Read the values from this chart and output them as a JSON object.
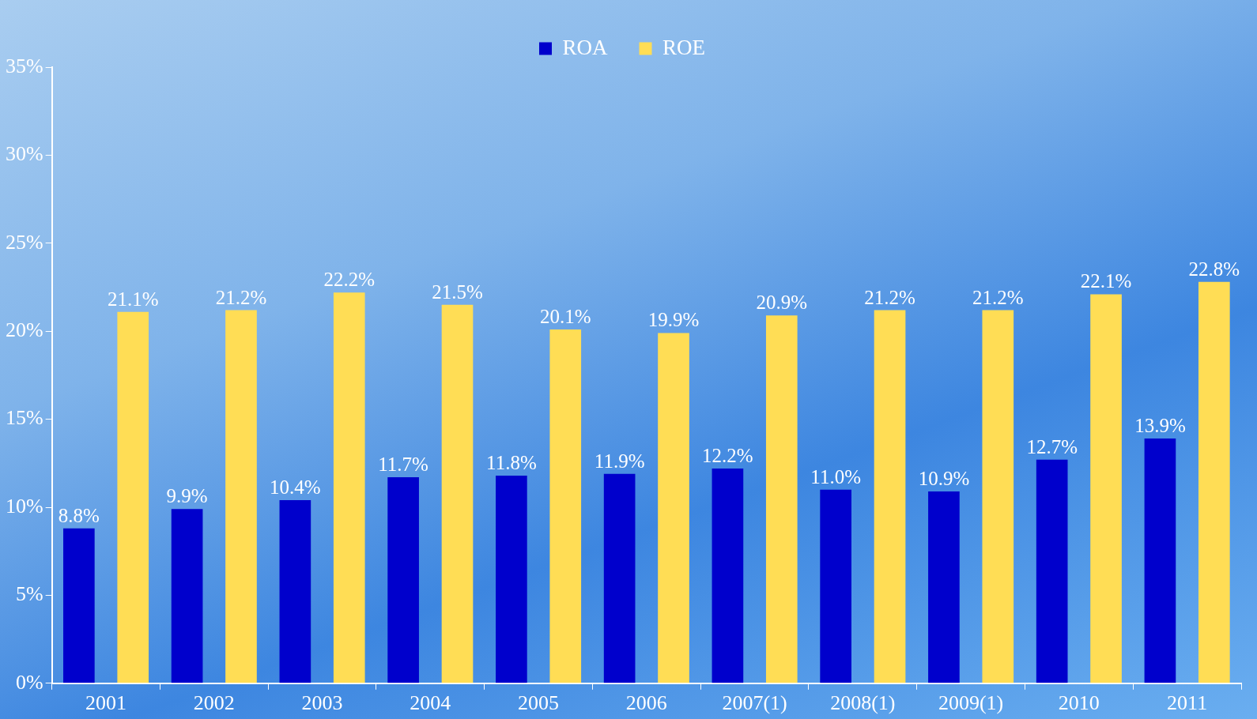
{
  "chart_data": {
    "type": "bar",
    "categories": [
      "2001",
      "2002",
      "2003",
      "2004",
      "2005",
      "2006",
      "2007(1)",
      "2008(1)",
      "2009(1)",
      "2010",
      "2011"
    ],
    "series": [
      {
        "name": "ROA",
        "color": "#0000cc",
        "values": [
          8.8,
          9.9,
          10.4,
          11.7,
          11.8,
          11.9,
          12.2,
          11.0,
          10.9,
          12.7,
          13.9
        ],
        "value_labels": [
          "8.8%",
          "9.9%",
          "10.4%",
          "11.7%",
          "11.8%",
          "11.9%",
          "12.2%",
          "11.0%",
          "10.9%",
          "12.7%",
          "13.9%"
        ]
      },
      {
        "name": "ROE",
        "color": "#ffdd55",
        "values": [
          21.1,
          21.2,
          22.2,
          21.5,
          20.1,
          19.9,
          20.9,
          21.2,
          21.2,
          22.1,
          22.8
        ],
        "value_labels": [
          "21.1%",
          "21.2%",
          "22.2%",
          "21.5%",
          "20.1%",
          "19.9%",
          "20.9%",
          "21.2%",
          "21.2%",
          "22.1%",
          "22.8%"
        ]
      }
    ],
    "ylim": [
      0,
      35
    ],
    "yticks": [
      {
        "value": 0,
        "label": "0%"
      },
      {
        "value": 5,
        "label": "5%"
      },
      {
        "value": 10,
        "label": "10%"
      },
      {
        "value": 15,
        "label": "15%"
      },
      {
        "value": 20,
        "label": "20%"
      },
      {
        "value": 25,
        "label": "25%"
      },
      {
        "value": 30,
        "label": "30%"
      },
      {
        "value": 35,
        "label": "35%"
      }
    ],
    "grid": false,
    "legend": "top"
  }
}
